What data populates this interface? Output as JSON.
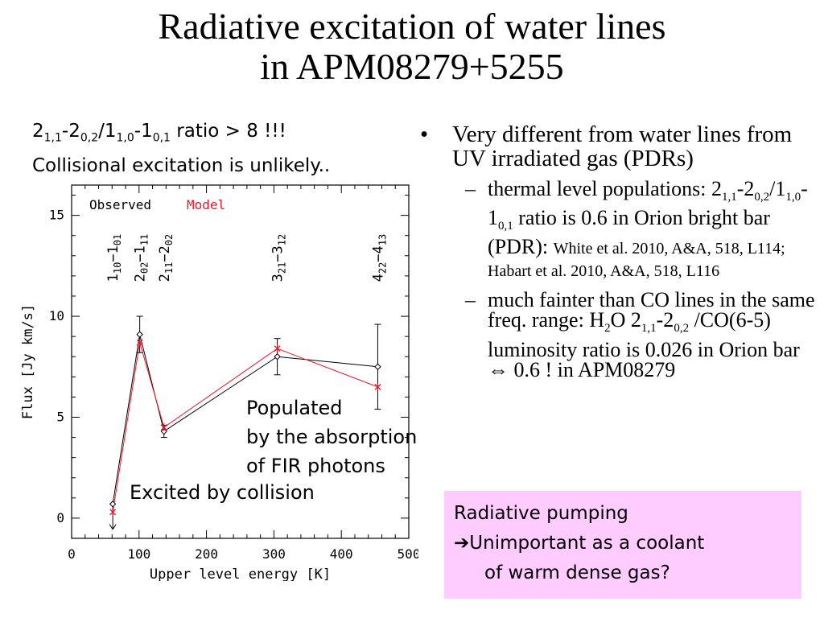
{
  "slide": {
    "title_line1": "Radiative excitation of water lines",
    "title_line2": "in APM08279+5255",
    "ratio_note": {
      "ratio_prefix": "2",
      "ratio_sub_a": "1,1",
      "ratio_mid_a": "-2",
      "ratio_sub_b": "0,2",
      "ratio_mid_b": "/1",
      "ratio_sub_c": "1,0",
      "ratio_mid_c": "-1",
      "ratio_sub_d": "0,1",
      "ratio_tail": " ratio > 8 !!!",
      "line2": "Collisional excitation is unlikely.."
    },
    "bullet1": "Very different from water lines from UV irradiated gas (PDRs)",
    "bullet_symbol": "•",
    "dash_symbol": "–",
    "sub1": {
      "t1": "thermal level populations: 2",
      "s1": "1,1",
      "t2": "-2",
      "s2": "0,2",
      "t3": "/1",
      "s3": "1,0",
      "t4": "-1",
      "s4": "0,1",
      "t5": " ratio is 0.6 in Orion bright bar (PDR): ",
      "ref": "White et al. 2010, A&A, 518, L114; Habart et al. 2010, A&A, 518, L116"
    },
    "sub2": {
      "t1": "much fainter than CO lines in the same freq. range: H",
      "s1": "2",
      "t2": "O 2",
      "s2": "1,1",
      "t3": "-2",
      "s3": "0,2",
      "t4": " /CO(6-5) luminosity ratio is 0.026 in Orion bar ",
      "arrow": "⇔",
      "t5": " 0.6 ! in APM08279"
    },
    "box": {
      "line1": "Radiative pumping",
      "arrow": "➔",
      "line2": "Unimportant as a coolant",
      "line3": "of warm dense gas?"
    },
    "annotation_populated": [
      "Populated",
      "by the absorption",
      "of FIR photons"
    ],
    "annotation_collision": "Excited by collision",
    "colors": {
      "observed": "#000000",
      "model": "#e8182c",
      "box_bg": "#ffccff"
    }
  },
  "chart_data": {
    "type": "line",
    "xlabel": "Upper level energy [K]",
    "ylabel": "Flux [Jy km/s]",
    "xlim": [
      0,
      500
    ],
    "ylim": [
      -1,
      16.5
    ],
    "x_ticks": [
      0,
      100,
      200,
      300,
      400,
      500
    ],
    "y_ticks": [
      0,
      5,
      10,
      15
    ],
    "grid": false,
    "legend": {
      "observed": "Observed",
      "model": "Model",
      "placement": "top-left"
    },
    "transition_labels": [
      {
        "x": 61,
        "base": "1",
        "sub1": "10",
        "mid": "−1",
        "sub2": "01"
      },
      {
        "x": 101,
        "base": "2",
        "sub1": "02",
        "mid": "−1",
        "sub2": "11"
      },
      {
        "x": 137,
        "base": "2",
        "sub1": "11",
        "mid": "−2",
        "sub2": "02"
      },
      {
        "x": 305,
        "base": "3",
        "sub1": "21",
        "mid": "−3",
        "sub2": "12"
      },
      {
        "x": 454,
        "base": "4",
        "sub1": "22",
        "mid": "−4",
        "sub2": "13"
      }
    ],
    "series": [
      {
        "name": "Observed",
        "x": [
          61,
          101,
          137,
          305,
          454
        ],
        "y": [
          0.7,
          9.1,
          4.3,
          8.0,
          7.5
        ],
        "err": [
          null,
          0.9,
          0.3,
          0.9,
          2.1
        ],
        "upper_limit": [
          true,
          false,
          false,
          false,
          false
        ],
        "color": "#000000",
        "marker": "diamond"
      },
      {
        "name": "Model",
        "x": [
          61,
          101,
          137,
          305,
          454
        ],
        "y": [
          0.3,
          8.7,
          4.5,
          8.4,
          6.5
        ],
        "color": "#e8182c",
        "marker": "asterisk"
      }
    ]
  }
}
